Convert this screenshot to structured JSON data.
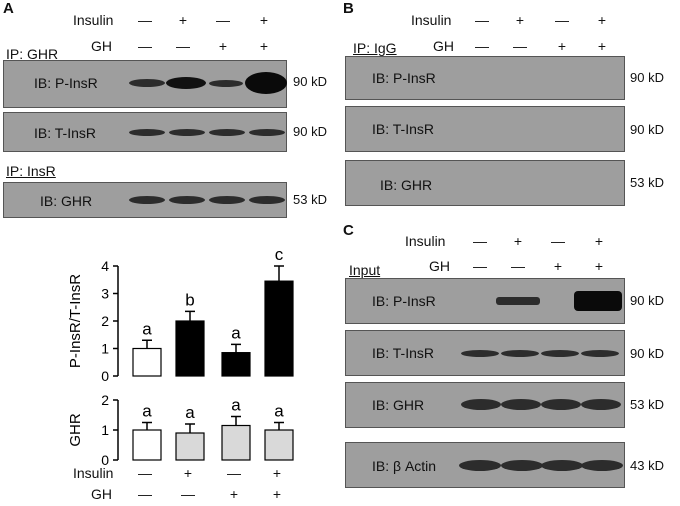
{
  "panelA": {
    "letter": "A",
    "insulin_label": "Insulin",
    "gh_label": "GH",
    "insulin_signs": [
      "—",
      "+",
      "—",
      "+"
    ],
    "gh_signs": [
      "—",
      "—",
      "+",
      "+"
    ],
    "ip_ghr": "IP: GHR",
    "ip_insr": "IP: InsR",
    "blots": [
      {
        "label": "IB: P-InsR",
        "kd": "90 kD"
      },
      {
        "label": "IB: T-InsR",
        "kd": "90 kD"
      },
      {
        "label": "IB: GHR",
        "kd": "53 kD"
      }
    ]
  },
  "panelB": {
    "letter": "B",
    "insulin_label": "Insulin",
    "gh_label": "GH",
    "insulin_signs": [
      "—",
      "+",
      "—",
      "+"
    ],
    "gh_signs": [
      "—",
      "—",
      "+",
      "+"
    ],
    "ip_igg": "IP: IgG",
    "blots": [
      {
        "label": "IB: P-InsR",
        "kd": "90 kD"
      },
      {
        "label": "IB: T-InsR",
        "kd": "90 kD"
      },
      {
        "label": "IB: GHR",
        "kd": "53 kD"
      }
    ]
  },
  "panelC": {
    "letter": "C",
    "insulin_label": "Insulin",
    "gh_label": "GH",
    "insulin_signs": [
      "—",
      "+",
      "—",
      "+"
    ],
    "gh_signs": [
      "—",
      "—",
      "+",
      "+"
    ],
    "input_label": "Input",
    "blots": [
      {
        "label": "IB: P-InsR",
        "kd": "90 kD"
      },
      {
        "label": "IB: T-InsR",
        "kd": "90 kD"
      },
      {
        "label": "IB: GHR",
        "kd": "53 kD"
      },
      {
        "label": "IB: β Actin",
        "kd": "43 kD"
      }
    ]
  },
  "chart_data": [
    {
      "type": "bar",
      "ylabel": "P-InsR/T-InsR",
      "ylim": [
        0,
        4
      ],
      "yticks": [
        0,
        1,
        2,
        3,
        4
      ],
      "categories": [
        "1",
        "2",
        "3",
        "4"
      ],
      "values": [
        1.0,
        2.0,
        0.85,
        3.45
      ],
      "errors": [
        0.3,
        0.35,
        0.3,
        0.55
      ],
      "letters": [
        "a",
        "b",
        "a",
        "c"
      ],
      "colors": [
        "#ffffff",
        "#000000",
        "#000000",
        "#000000"
      ]
    },
    {
      "type": "bar",
      "ylabel": "GHR",
      "ylim": [
        0,
        2
      ],
      "yticks": [
        0,
        1,
        2
      ],
      "categories": [
        "1",
        "2",
        "3",
        "4"
      ],
      "values": [
        1.0,
        0.9,
        1.15,
        1.0
      ],
      "errors": [
        0.25,
        0.3,
        0.3,
        0.25
      ],
      "letters": [
        "a",
        "a",
        "a",
        "a"
      ],
      "colors": [
        "#ffffff",
        "#d9d9d9",
        "#d9d9d9",
        "#d9d9d9"
      ]
    }
  ],
  "chart_axis": {
    "insulin_label": "Insulin",
    "gh_label": "GH",
    "insulin_signs": [
      "—",
      "+",
      "—",
      "+"
    ],
    "gh_signs": [
      "—",
      "—",
      "+",
      "+"
    ]
  }
}
